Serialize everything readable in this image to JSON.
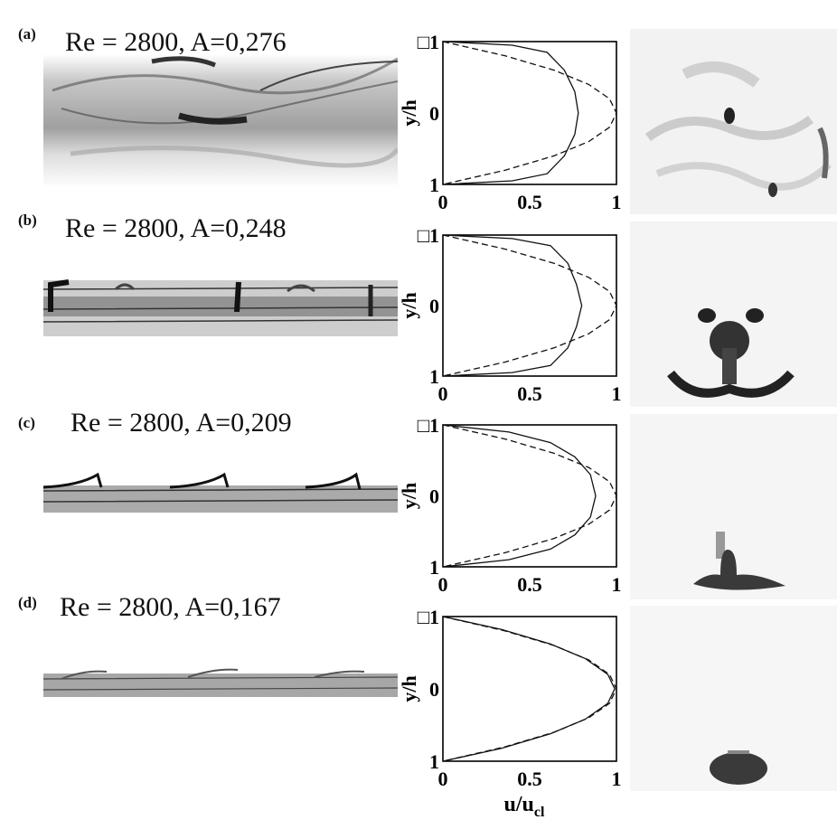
{
  "panels": [
    {
      "letter": "(a)",
      "title": "Re = 2800, A=0,276"
    },
    {
      "letter": "(b)",
      "title": "Re = 2800, A=0,248"
    },
    {
      "letter": "(c)",
      "title": "Re = 2800, A=0,209"
    },
    {
      "letter": "(d)",
      "title": "Re = 2800, A=0,167"
    }
  ],
  "profile_axes": {
    "ylabel": "y/h",
    "xlabel_main": "u/u",
    "xlabel_sub": "cl",
    "x_ticks": [
      "0",
      "0.5",
      "1"
    ],
    "y_ticks": [
      "□1",
      "0",
      "1"
    ]
  },
  "chart_data": [
    {
      "type": "line",
      "panel": "(a)",
      "xlabel": "u/ucl",
      "ylabel": "y/h",
      "xlim": [
        0,
        1
      ],
      "ylim": [
        -1,
        1
      ],
      "series": [
        {
          "style": "solid",
          "x": [
            0,
            0.4,
            0.6,
            0.7,
            0.76,
            0.78,
            0.76,
            0.7,
            0.6,
            0.4,
            0
          ],
          "y": [
            1,
            0.95,
            0.85,
            0.6,
            0.3,
            0,
            -0.3,
            -0.6,
            -0.85,
            -0.95,
            -1
          ]
        },
        {
          "style": "dashed",
          "x": [
            0,
            0.36,
            0.64,
            0.84,
            0.96,
            1,
            0.96,
            0.84,
            0.64,
            0.36,
            0
          ],
          "y": [
            1,
            0.8,
            0.6,
            0.4,
            0.2,
            0,
            -0.2,
            -0.4,
            -0.6,
            -0.8,
            -1
          ]
        }
      ]
    },
    {
      "type": "line",
      "panel": "(b)",
      "xlabel": "u/ucl",
      "ylabel": "y/h",
      "xlim": [
        0,
        1
      ],
      "ylim": [
        -1,
        1
      ],
      "series": [
        {
          "style": "solid",
          "x": [
            0,
            0.4,
            0.62,
            0.72,
            0.77,
            0.8,
            0.77,
            0.72,
            0.62,
            0.4,
            0
          ],
          "y": [
            1,
            0.95,
            0.85,
            0.6,
            0.3,
            0,
            -0.3,
            -0.6,
            -0.85,
            -0.95,
            -1
          ]
        },
        {
          "style": "dashed",
          "x": [
            0,
            0.36,
            0.64,
            0.84,
            0.96,
            1,
            0.96,
            0.84,
            0.64,
            0.36,
            0
          ],
          "y": [
            1,
            0.8,
            0.6,
            0.4,
            0.2,
            0,
            -0.2,
            -0.4,
            -0.6,
            -0.8,
            -1
          ]
        }
      ]
    },
    {
      "type": "line",
      "panel": "(c)",
      "xlabel": "u/ucl",
      "ylabel": "y/h",
      "xlim": [
        0,
        1
      ],
      "ylim": [
        -1,
        1
      ],
      "series": [
        {
          "style": "solid",
          "x": [
            0,
            0.38,
            0.62,
            0.76,
            0.85,
            0.88,
            0.85,
            0.76,
            0.62,
            0.38,
            0
          ],
          "y": [
            1,
            0.9,
            0.75,
            0.55,
            0.3,
            0,
            -0.3,
            -0.55,
            -0.75,
            -0.9,
            -1
          ]
        },
        {
          "style": "dashed",
          "x": [
            0,
            0.36,
            0.64,
            0.84,
            0.96,
            1,
            0.96,
            0.84,
            0.64,
            0.36,
            0
          ],
          "y": [
            1,
            0.8,
            0.6,
            0.4,
            0.2,
            0,
            -0.2,
            -0.4,
            -0.6,
            -0.8,
            -1
          ]
        }
      ]
    },
    {
      "type": "line",
      "panel": "(d)",
      "xlabel": "u/ucl",
      "ylabel": "y/h",
      "xlim": [
        0,
        1
      ],
      "ylim": [
        -1,
        1
      ],
      "series": [
        {
          "style": "solid",
          "x": [
            0,
            0.34,
            0.62,
            0.82,
            0.95,
            0.99,
            0.95,
            0.82,
            0.62,
            0.34,
            0
          ],
          "y": [
            1,
            0.82,
            0.62,
            0.42,
            0.2,
            0,
            -0.2,
            -0.42,
            -0.62,
            -0.82,
            -1
          ]
        },
        {
          "style": "dashed",
          "x": [
            0,
            0.36,
            0.64,
            0.84,
            0.96,
            1,
            0.96,
            0.84,
            0.64,
            0.36,
            0
          ],
          "y": [
            1,
            0.8,
            0.6,
            0.4,
            0.2,
            0,
            -0.2,
            -0.4,
            -0.6,
            -0.8,
            -1
          ]
        }
      ]
    }
  ]
}
